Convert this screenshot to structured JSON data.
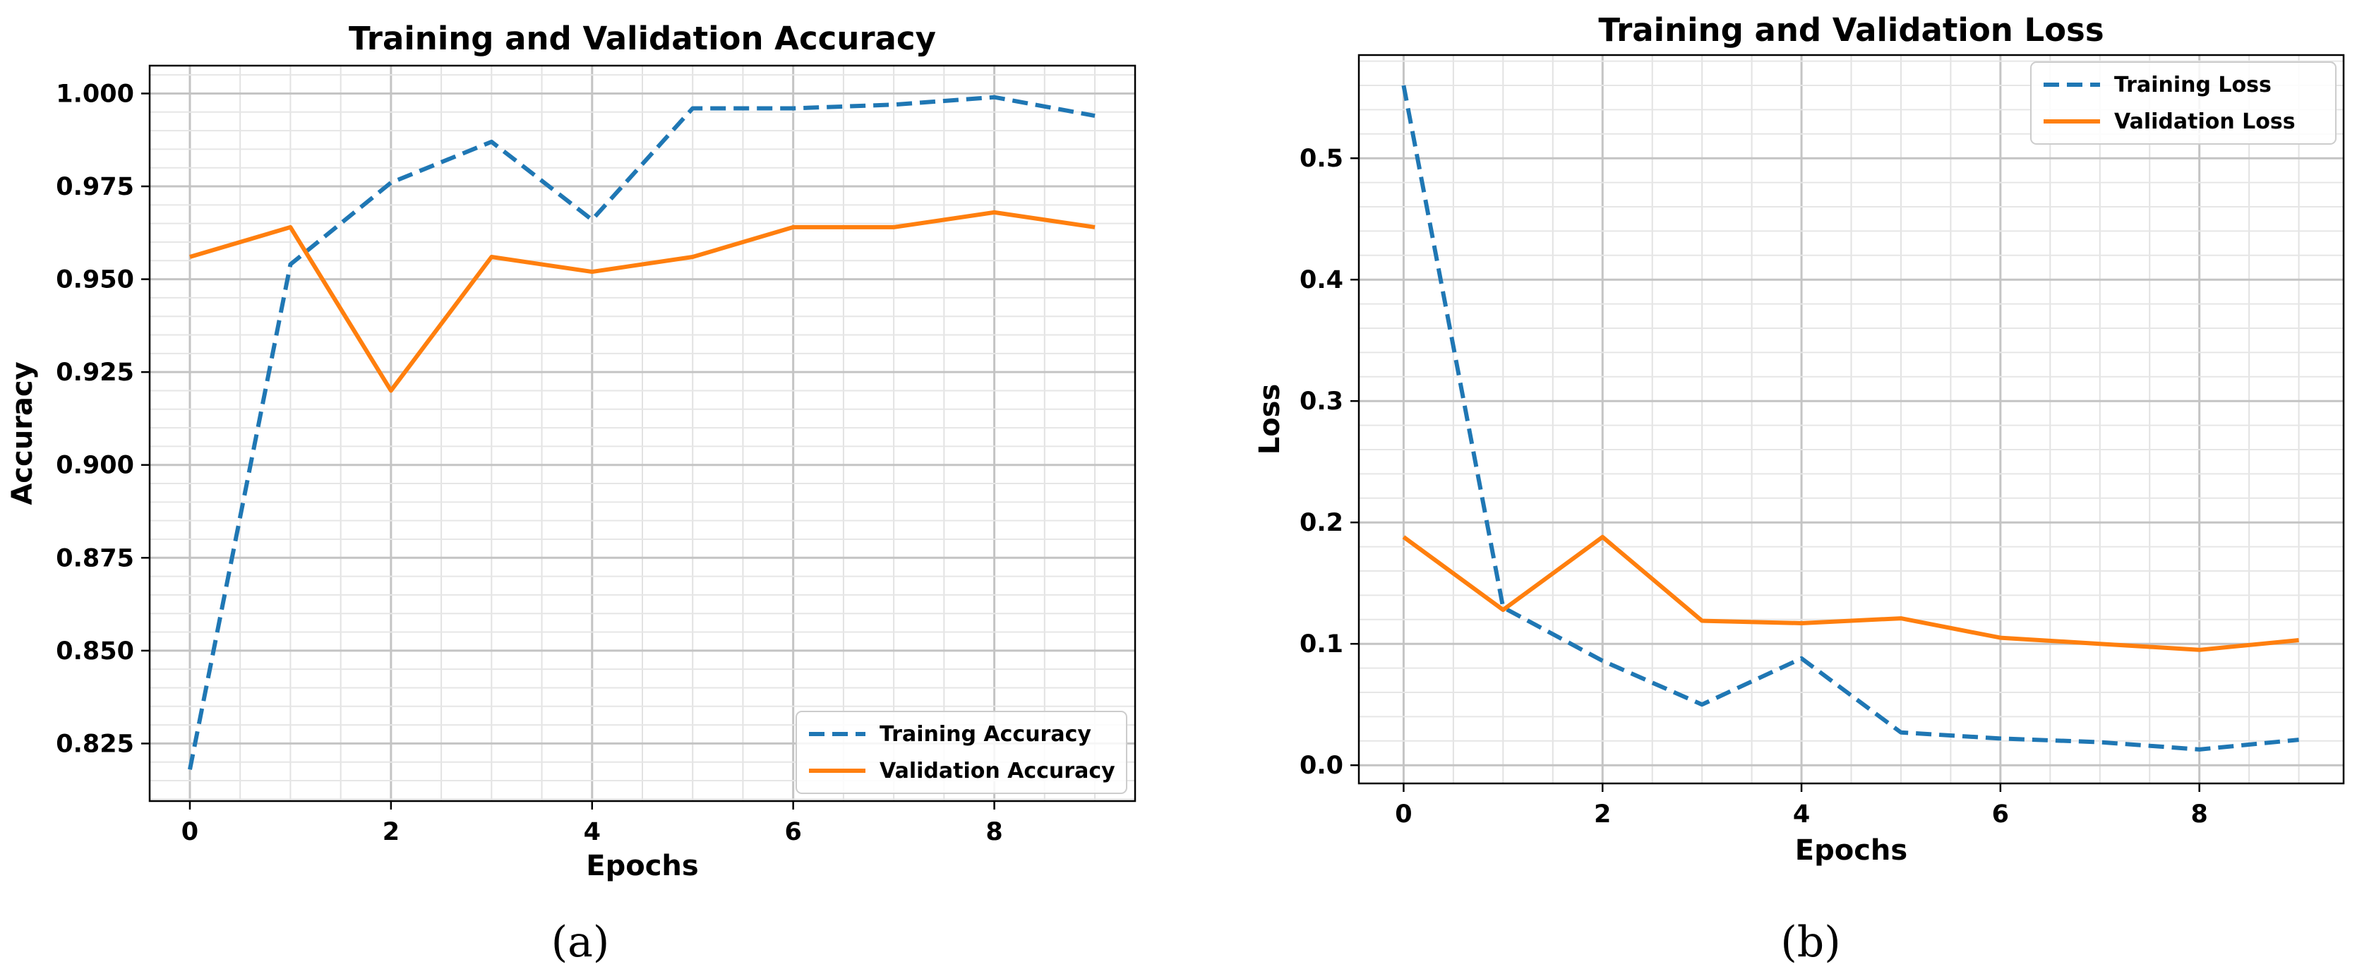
{
  "chart_data": [
    {
      "id": "a",
      "type": "line",
      "title": "Training and Validation Accuracy",
      "xlabel": "Epochs",
      "ylabel": "Accuracy",
      "caption": "(a)",
      "xlim": [
        -0.4,
        9.4
      ],
      "ylim": [
        0.8095,
        1.0075
      ],
      "x_ticks": [
        0,
        2,
        4,
        6,
        8
      ],
      "x_tick_labels": [
        "0",
        "2",
        "4",
        "6",
        "8"
      ],
      "y_ticks": [
        0.825,
        0.85,
        0.875,
        0.9,
        0.925,
        0.95,
        0.975,
        1.0
      ],
      "y_tick_labels": [
        "0.825",
        "0.850",
        "0.875",
        "0.900",
        "0.925",
        "0.950",
        "0.975",
        "1.000"
      ],
      "grid": true,
      "legend_position": "lower-right",
      "x": [
        0,
        1,
        2,
        3,
        4,
        5,
        6,
        7,
        8,
        9
      ],
      "series": [
        {
          "name": "Training Accuracy",
          "color": "#1f77b4",
          "style": "dashed",
          "values": [
            0.818,
            0.954,
            0.976,
            0.987,
            0.966,
            0.996,
            0.996,
            0.997,
            0.999,
            0.994
          ]
        },
        {
          "name": "Validation Accuracy",
          "color": "#ff7f0e",
          "style": "solid",
          "values": [
            0.956,
            0.964,
            0.92,
            0.956,
            0.952,
            0.956,
            0.964,
            0.964,
            0.968,
            0.964
          ]
        }
      ]
    },
    {
      "id": "b",
      "type": "line",
      "title": "Training and Validation Loss",
      "xlabel": "Epochs",
      "ylabel": "Loss",
      "caption": "(b)",
      "xlim": [
        -0.45,
        9.45
      ],
      "ylim": [
        -0.015,
        0.585
      ],
      "x_ticks": [
        0,
        2,
        4,
        6,
        8
      ],
      "x_tick_labels": [
        "0",
        "2",
        "4",
        "6",
        "8"
      ],
      "y_ticks": [
        0.0,
        0.1,
        0.2,
        0.3,
        0.4,
        0.5
      ],
      "y_tick_labels": [
        "0.0",
        "0.1",
        "0.2",
        "0.3",
        "0.4",
        "0.5"
      ],
      "grid": true,
      "legend_position": "top-right",
      "x": [
        0,
        1,
        2,
        3,
        4,
        5,
        6,
        7,
        8,
        9
      ],
      "series": [
        {
          "name": "Training Loss",
          "color": "#1f77b4",
          "style": "dashed",
          "values": [
            0.56,
            0.13,
            0.086,
            0.05,
            0.088,
            0.027,
            0.022,
            0.019,
            0.013,
            0.021
          ]
        },
        {
          "name": "Validation Loss",
          "color": "#ff7f0e",
          "style": "solid",
          "values": [
            0.188,
            0.128,
            0.188,
            0.119,
            0.117,
            0.121,
            0.105,
            0.1,
            0.095,
            0.103
          ]
        }
      ]
    }
  ]
}
